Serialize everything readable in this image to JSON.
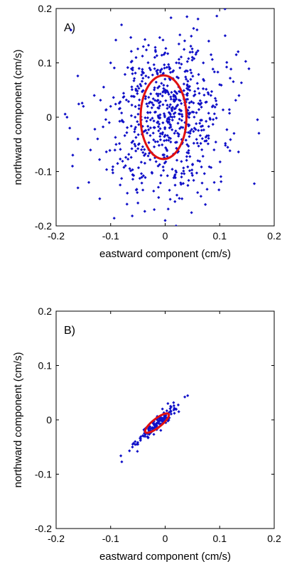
{
  "chart_data": [
    {
      "type": "scatter",
      "panel_label": "A)",
      "xlabel": "eastward component (cm/s)",
      "ylabel": "northward component (cm/s)",
      "xlim": [
        -0.2,
        0.2
      ],
      "ylim": [
        -0.2,
        0.2
      ],
      "xticks": [
        "-0.2",
        "-0.1",
        "0",
        "0.1",
        "0.2"
      ],
      "yticks": [
        "-0.2",
        "-0.1",
        "0",
        "0.1",
        "0.2"
      ],
      "marker_color": "#1010c8",
      "ellipse_color": "#e01010",
      "ellipse": {
        "cx": -0.003,
        "cy": 0.0,
        "rx": 0.042,
        "ry": 0.077,
        "angle_deg": 0
      },
      "point_count": 720,
      "distribution": {
        "mean": [
          0.0,
          0.0
        ],
        "std": [
          0.055,
          0.075
        ],
        "corr": 0.15
      },
      "points": [
        [
          -0.18,
          0.0
        ],
        [
          -0.175,
          -0.02
        ],
        [
          -0.17,
          -0.09
        ],
        [
          -0.16,
          -0.04
        ],
        [
          -0.15,
          0.02
        ],
        [
          -0.14,
          -0.12
        ],
        [
          -0.13,
          0.04
        ],
        [
          -0.1,
          0.1
        ],
        [
          -0.16,
          -0.13
        ],
        [
          -0.12,
          -0.15
        ],
        [
          -0.08,
          0.17
        ],
        [
          -0.07,
          -0.16
        ],
        [
          0.04,
          0.185
        ],
        [
          0.07,
          0.1
        ],
        [
          0.08,
          0.14
        ],
        [
          0.1,
          0.06
        ],
        [
          0.11,
          0.15
        ],
        [
          0.09,
          -0.12
        ],
        [
          0.0,
          -0.19
        ],
        [
          -0.02,
          -0.17
        ],
        [
          0.02,
          -0.2
        ],
        [
          -0.06,
          0.08
        ],
        [
          -0.04,
          0.13
        ],
        [
          0.05,
          0.12
        ],
        [
          -0.1,
          0.02
        ],
        [
          -0.09,
          -0.05
        ],
        [
          0.06,
          -0.08
        ],
        [
          0.03,
          -0.11
        ],
        [
          -0.03,
          -0.06
        ],
        [
          0.0,
          0.05
        ]
      ]
    },
    {
      "type": "scatter",
      "panel_label": "B)",
      "xlabel": "eastward component (cm/s)",
      "ylabel": "northward component (cm/s)",
      "xlim": [
        -0.2,
        0.2
      ],
      "ylim": [
        -0.2,
        0.2
      ],
      "xticks": [
        "-0.2",
        "-0.1",
        "0",
        "0.1",
        "0.2"
      ],
      "yticks": [
        "-0.2",
        "-0.1",
        "0",
        "0.1",
        "0.2"
      ],
      "marker_color": "#1010c8",
      "ellipse_color": "#e01010",
      "ellipse": {
        "cx": -0.015,
        "cy": -0.006,
        "rx": 0.027,
        "ry": 0.008,
        "angle_deg": 38
      },
      "point_count": 150,
      "distribution": {
        "mean": [
          -0.015,
          -0.008
        ],
        "std": [
          0.02,
          0.018
        ],
        "corr": 0.93
      },
      "points": [
        [
          -0.06,
          -0.05
        ],
        [
          -0.055,
          -0.04
        ],
        [
          -0.05,
          -0.045
        ],
        [
          -0.045,
          -0.035
        ],
        [
          -0.04,
          -0.03
        ],
        [
          -0.03,
          -0.02
        ],
        [
          -0.02,
          -0.01
        ],
        [
          -0.01,
          0.0
        ],
        [
          0.0,
          0.01
        ],
        [
          0.005,
          0.03
        ],
        [
          0.01,
          0.025
        ],
        [
          0.02,
          0.02
        ],
        [
          0.025,
          0.015
        ],
        [
          -0.005,
          0.02
        ],
        [
          0.0,
          0.0
        ]
      ]
    }
  ]
}
